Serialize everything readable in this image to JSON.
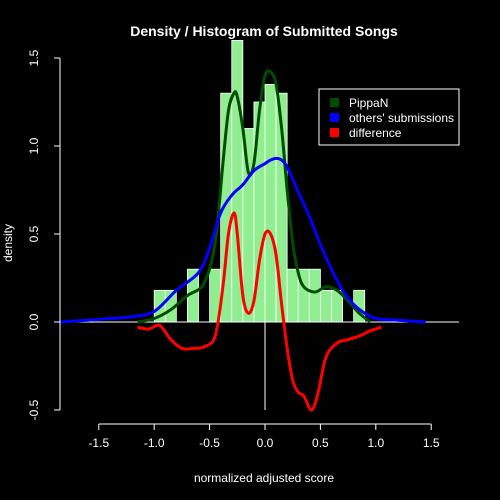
{
  "chart_data": {
    "type": "bar",
    "title": "Density / Histogram of Submitted Songs",
    "xlabel": "normalized adjusted score",
    "ylabel": "density",
    "xlim": [
      -1.85,
      1.85
    ],
    "ylim": [
      -0.5,
      1.5
    ],
    "x_ticks": [
      -1.5,
      -1.0,
      -0.5,
      0.0,
      0.5,
      1.0,
      1.5
    ],
    "x_tick_labels": [
      "-1.5",
      "-1.0",
      "-0.5",
      "0.0",
      "0.5",
      "1.0",
      "1.5"
    ],
    "y_ticks": [
      -0.5,
      0.0,
      0.5,
      1.0,
      1.5
    ],
    "y_tick_labels": [
      "-0.5",
      "0.0",
      "0.5",
      "1.0",
      "1.5"
    ],
    "legend_position": "top-right",
    "grid": false,
    "colors": {
      "background": "#000000",
      "foreground": "#ffffff",
      "histogram_fill": "#90ee90"
    },
    "histogram": {
      "bin_width": 0.1,
      "bins": [
        {
          "x": [
            -1.0,
            -0.9
          ],
          "density": 0.18
        },
        {
          "x": [
            -0.9,
            -0.8
          ],
          "density": 0.18
        },
        {
          "x": [
            -0.8,
            -0.7
          ],
          "density": 0.0
        },
        {
          "x": [
            -0.7,
            -0.6
          ],
          "density": 0.3
        },
        {
          "x": [
            -0.6,
            -0.5
          ],
          "density": 0.0
        },
        {
          "x": [
            -0.5,
            -0.4
          ],
          "density": 0.3
        },
        {
          "x": [
            -0.4,
            -0.3
          ],
          "density": 1.3
        },
        {
          "x": [
            -0.3,
            -0.2
          ],
          "density": 1.6
        },
        {
          "x": [
            -0.2,
            -0.1
          ],
          "density": 1.1
        },
        {
          "x": [
            -0.1,
            0.0
          ],
          "density": 1.25
        },
        {
          "x": [
            0.0,
            0.1
          ],
          "density": 1.35
        },
        {
          "x": [
            0.1,
            0.2
          ],
          "density": 1.3
        },
        {
          "x": [
            0.2,
            0.3
          ],
          "density": 0.3
        },
        {
          "x": [
            0.3,
            0.4
          ],
          "density": 0.3
        },
        {
          "x": [
            0.4,
            0.5
          ],
          "density": 0.3
        },
        {
          "x": [
            0.5,
            0.6
          ],
          "density": 0.18
        },
        {
          "x": [
            0.6,
            0.7
          ],
          "density": 0.18
        },
        {
          "x": [
            0.7,
            0.8
          ],
          "density": 0.0
        },
        {
          "x": [
            0.8,
            0.9
          ],
          "density": 0.18
        }
      ]
    },
    "series": [
      {
        "name": "PippaN",
        "color": "#004d00",
        "x": [
          -1.15,
          -1.0,
          -0.85,
          -0.7,
          -0.55,
          -0.45,
          -0.38,
          -0.33,
          -0.28,
          -0.25,
          -0.2,
          -0.15,
          -0.1,
          -0.05,
          0.0,
          0.05,
          0.1,
          0.15,
          0.2,
          0.25,
          0.3,
          0.35,
          0.45,
          0.55,
          0.65,
          0.75,
          0.85,
          0.95
        ],
        "y": [
          0.0,
          0.02,
          0.07,
          0.15,
          0.22,
          0.45,
          0.9,
          1.2,
          1.3,
          1.28,
          1.1,
          0.85,
          0.9,
          1.2,
          1.4,
          1.42,
          1.35,
          1.1,
          0.75,
          0.45,
          0.28,
          0.2,
          0.17,
          0.2,
          0.18,
          0.12,
          0.05,
          0.0
        ]
      },
      {
        "name": "others' submissions",
        "color": "#0000ff",
        "x": [
          -1.85,
          -1.6,
          -1.4,
          -1.2,
          -1.0,
          -0.8,
          -0.6,
          -0.5,
          -0.4,
          -0.3,
          -0.2,
          -0.1,
          0.0,
          0.05,
          0.1,
          0.15,
          0.2,
          0.3,
          0.4,
          0.5,
          0.6,
          0.7,
          0.8,
          0.9,
          1.0,
          1.2,
          1.45
        ],
        "y": [
          0.0,
          0.01,
          0.02,
          0.03,
          0.06,
          0.18,
          0.28,
          0.42,
          0.62,
          0.72,
          0.78,
          0.86,
          0.9,
          0.92,
          0.93,
          0.92,
          0.88,
          0.74,
          0.6,
          0.44,
          0.3,
          0.18,
          0.1,
          0.05,
          0.02,
          0.01,
          0.0
        ]
      },
      {
        "name": "difference",
        "color": "#ff0000",
        "x": [
          -1.15,
          -1.05,
          -0.95,
          -0.85,
          -0.75,
          -0.65,
          -0.55,
          -0.45,
          -0.38,
          -0.33,
          -0.28,
          -0.25,
          -0.2,
          -0.15,
          -0.1,
          -0.05,
          0.0,
          0.05,
          0.1,
          0.15,
          0.2,
          0.25,
          0.3,
          0.35,
          0.42,
          0.48,
          0.55,
          0.65,
          0.75,
          0.85,
          0.95,
          1.05
        ],
        "y": [
          -0.03,
          -0.04,
          -0.02,
          -0.1,
          -0.15,
          -0.15,
          -0.14,
          -0.08,
          0.2,
          0.5,
          0.62,
          0.5,
          0.15,
          0.05,
          0.12,
          0.35,
          0.5,
          0.5,
          0.38,
          0.1,
          -0.15,
          -0.33,
          -0.4,
          -0.42,
          -0.5,
          -0.4,
          -0.2,
          -0.12,
          -0.1,
          -0.08,
          -0.05,
          -0.03
        ]
      }
    ]
  }
}
